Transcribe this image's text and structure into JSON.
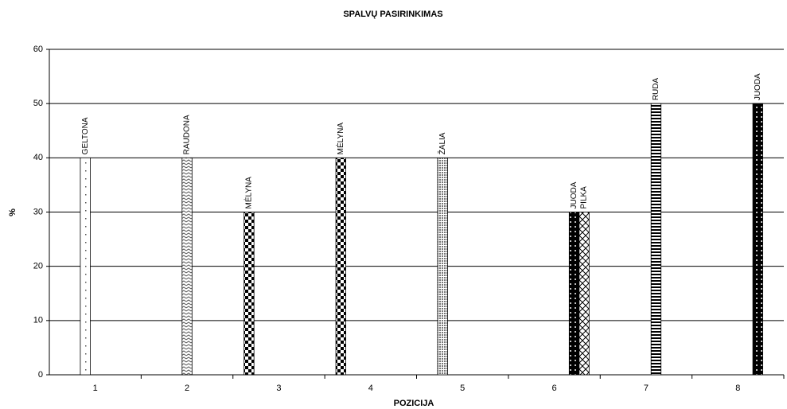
{
  "chart_data": {
    "type": "bar",
    "title": "SPALVŲ PASIRINKIMAS",
    "x_label": "POZICIJA",
    "y_label": "%",
    "categories": [
      "1",
      "2",
      "3",
      "4",
      "5",
      "6",
      "7",
      "8"
    ],
    "series": [
      {
        "name": "MĖLYNA",
        "values": [
          null,
          null,
          30,
          40,
          null,
          null,
          null,
          null
        ]
      },
      {
        "name": "ŽALIA",
        "values": [
          null,
          null,
          null,
          null,
          40,
          null,
          null,
          null
        ]
      },
      {
        "name": "GELTONA",
        "values": [
          40,
          null,
          null,
          null,
          null,
          null,
          null,
          null
        ]
      },
      {
        "name": "RAUDONA",
        "values": [
          null,
          40,
          null,
          null,
          null,
          null,
          null,
          null
        ]
      },
      {
        "name": "RUDA",
        "values": [
          null,
          null,
          null,
          null,
          null,
          null,
          50,
          null
        ]
      },
      {
        "name": "JUODA",
        "values": [
          null,
          null,
          null,
          null,
          null,
          30,
          null,
          50
        ]
      },
      {
        "name": "PILKA",
        "values": [
          null,
          null,
          null,
          null,
          null,
          30,
          null,
          null
        ]
      }
    ],
    "ylim": [
      0,
      60
    ],
    "yticks": [
      0,
      10,
      20,
      30,
      40,
      50,
      60
    ],
    "grid": true
  }
}
